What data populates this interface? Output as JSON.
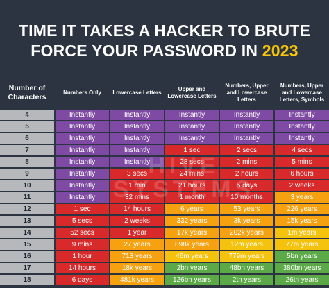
{
  "header": {
    "title_line1": "TIME IT TAKES A HACKER TO BRUTE",
    "title_line2_prefix": "FORCE YOUR PASSWORD IN ",
    "title_year": "2023"
  },
  "colors": {
    "background": "#2b3440",
    "accent_year": "#f6c40b",
    "number_column": "#b6b8bb",
    "Instantly": "#7e4aa3",
    "red": "#d82a2b",
    "orange": "#f6a110",
    "yellow": "#f5c20d",
    "green": "#5ba947"
  },
  "chart_data": {
    "type": "table",
    "columns": [
      "Number of Characters",
      "Numbers Only",
      "Lowercase Letters",
      "Upper and Lowercase Letters",
      "Numbers, Upper and Lowercase Letters",
      "Numbers, Upper and Lowercase Letters, Symbols"
    ],
    "rows": [
      [
        "4",
        "Instantly",
        "Instantly",
        "Instantly",
        "Instantly",
        "Instantly"
      ],
      [
        "5",
        "Instantly",
        "Instantly",
        "Instantly",
        "Instantly",
        "Instantly"
      ],
      [
        "6",
        "Instantly",
        "Instantly",
        "Instantly",
        "Instantly",
        "Instantly"
      ],
      [
        "7",
        "Instantly",
        "Instantly",
        "1 sec",
        "2 secs",
        "4 secs"
      ],
      [
        "8",
        "Instantly",
        "Instantly",
        "28 secs",
        "2 mins",
        "5 mins"
      ],
      [
        "9",
        "Instantly",
        "3 secs",
        "24 mins",
        "2 hours",
        "6 hours"
      ],
      [
        "10",
        "Instantly",
        "1 min",
        "21 hours",
        "5 days",
        "2 weeks"
      ],
      [
        "11",
        "Instantly",
        "32 mins",
        "1 month",
        "10 months",
        "3 years"
      ],
      [
        "12",
        "1 sec",
        "14 hours",
        "6 years",
        "53 years",
        "226 years"
      ],
      [
        "13",
        "5 secs",
        "2 weeks",
        "332 years",
        "3k years",
        "15k years"
      ],
      [
        "14",
        "52 secs",
        "1 year",
        "17k years",
        "202k years",
        "1m years"
      ],
      [
        "15",
        "9 mins",
        "27 years",
        "898k years",
        "12m years",
        "77m years"
      ],
      [
        "16",
        "1 hour",
        "713 years",
        "46m years",
        "779m years",
        "5bn years"
      ],
      [
        "17",
        "14 hours",
        "18k years",
        "2bn years",
        "48bn years",
        "380bn years"
      ],
      [
        "18",
        "6 days",
        "481k years",
        "126bn years",
        "2tn years",
        "26tn years"
      ]
    ],
    "cell_colors": [
      [
        "n",
        "p",
        "p",
        "p",
        "p",
        "p"
      ],
      [
        "n",
        "p",
        "p",
        "p",
        "p",
        "p"
      ],
      [
        "n",
        "p",
        "p",
        "p",
        "p",
        "p"
      ],
      [
        "n",
        "p",
        "p",
        "r",
        "r",
        "r"
      ],
      [
        "n",
        "p",
        "p",
        "r",
        "r",
        "r"
      ],
      [
        "n",
        "p",
        "r",
        "r",
        "r",
        "r"
      ],
      [
        "n",
        "p",
        "r",
        "r",
        "r",
        "r"
      ],
      [
        "n",
        "p",
        "r",
        "r",
        "r",
        "o"
      ],
      [
        "n",
        "r",
        "r",
        "o",
        "o",
        "o"
      ],
      [
        "n",
        "r",
        "r",
        "o",
        "o",
        "o"
      ],
      [
        "n",
        "r",
        "r",
        "o",
        "o",
        "y"
      ],
      [
        "n",
        "r",
        "o",
        "o",
        "y",
        "y"
      ],
      [
        "n",
        "r",
        "o",
        "y",
        "y",
        "g"
      ],
      [
        "n",
        "r",
        "o",
        "g",
        "g",
        "g"
      ],
      [
        "n",
        "r",
        "o",
        "g",
        "g",
        "g"
      ]
    ]
  }
}
